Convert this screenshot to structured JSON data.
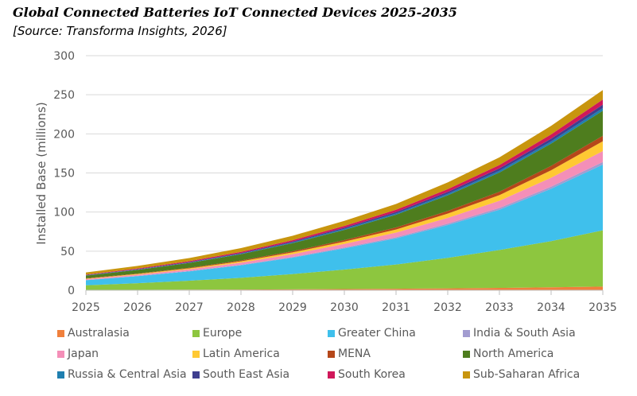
{
  "title": "Global Connected Batteries IoT Connected Devices 2025-2035",
  "subtitle": "[Source: Transforma Insights, 2026]",
  "chart_data": {
    "type": "area",
    "stacked": true,
    "ylabel": "Installed Base (millions)",
    "xlabel": "",
    "x": [
      "2025",
      "2026",
      "2027",
      "2028",
      "2029",
      "2030",
      "2031",
      "2032",
      "2033",
      "2034",
      "2035"
    ],
    "ylim": [
      0,
      300
    ],
    "yticks": [
      "0",
      "50",
      "100",
      "150",
      "200",
      "250",
      "300"
    ],
    "grid": true,
    "legend_position": "bottom",
    "series": [
      {
        "name": "Australasia",
        "color": "#F0803C",
        "values": [
          0.3,
          0.5,
          0.7,
          0.9,
          1.2,
          1.5,
          1.9,
          2.4,
          3.0,
          3.8,
          4.7
        ]
      },
      {
        "name": "Europe",
        "color": "#8DC63F",
        "values": [
          6,
          8.5,
          11.5,
          15,
          19.5,
          25,
          31,
          39,
          48.5,
          59,
          72
        ]
      },
      {
        "name": "Greater China",
        "color": "#3FC0EC",
        "values": [
          6.5,
          9,
          12,
          16,
          21,
          27,
          33.5,
          42,
          51.5,
          67,
          84
        ]
      },
      {
        "name": "India & South Asia",
        "color": "#A29CD0",
        "values": [
          0.3,
          0.4,
          0.5,
          0.7,
          0.9,
          1.1,
          1.4,
          1.8,
          2.2,
          2.7,
          3.3
        ]
      },
      {
        "name": "Japan",
        "color": "#F48FB8",
        "values": [
          1.2,
          1.6,
          2.1,
          2.8,
          3.6,
          4.6,
          5.9,
          7.4,
          9.2,
          11.4,
          14
        ]
      },
      {
        "name": "Latin America",
        "color": "#FFC933",
        "values": [
          0.5,
          0.8,
          1.1,
          1.6,
          2.2,
          3.0,
          4.0,
          5.4,
          7.2,
          9.5,
          12.5
        ]
      },
      {
        "name": "MENA",
        "color": "#B5471A",
        "values": [
          0.4,
          0.6,
          0.8,
          1.1,
          1.5,
          2.0,
          2.6,
          3.4,
          4.4,
          5.6,
          7.1
        ]
      },
      {
        "name": "North America",
        "color": "#4E7D1E",
        "values": [
          3.5,
          4.7,
          6.2,
          8.0,
          10.3,
          13.0,
          16.3,
          20.0,
          24.5,
          28.5,
          32
        ]
      },
      {
        "name": "Russia & Central Asia",
        "color": "#1F7FB0",
        "values": [
          0.3,
          0.4,
          0.5,
          0.7,
          0.9,
          1.2,
          1.5,
          1.9,
          2.3,
          2.8,
          3.4
        ]
      },
      {
        "name": "South East Asia",
        "color": "#3F3F8F",
        "values": [
          0.4,
          0.5,
          0.7,
          0.9,
          1.2,
          1.5,
          1.9,
          2.4,
          3.0,
          3.6,
          4.3
        ]
      },
      {
        "name": "South Korea",
        "color": "#D0185A",
        "values": [
          0.6,
          0.8,
          1.1,
          1.4,
          1.8,
          2.3,
          2.9,
          3.6,
          4.4,
          5.4,
          6.6
        ]
      },
      {
        "name": "Sub-Saharan Africa",
        "color": "#C8950E",
        "values": [
          2.8,
          3.3,
          4.0,
          4.8,
          5.6,
          6.5,
          7.5,
          8.6,
          9.7,
          10.9,
          12.1
        ]
      }
    ]
  }
}
